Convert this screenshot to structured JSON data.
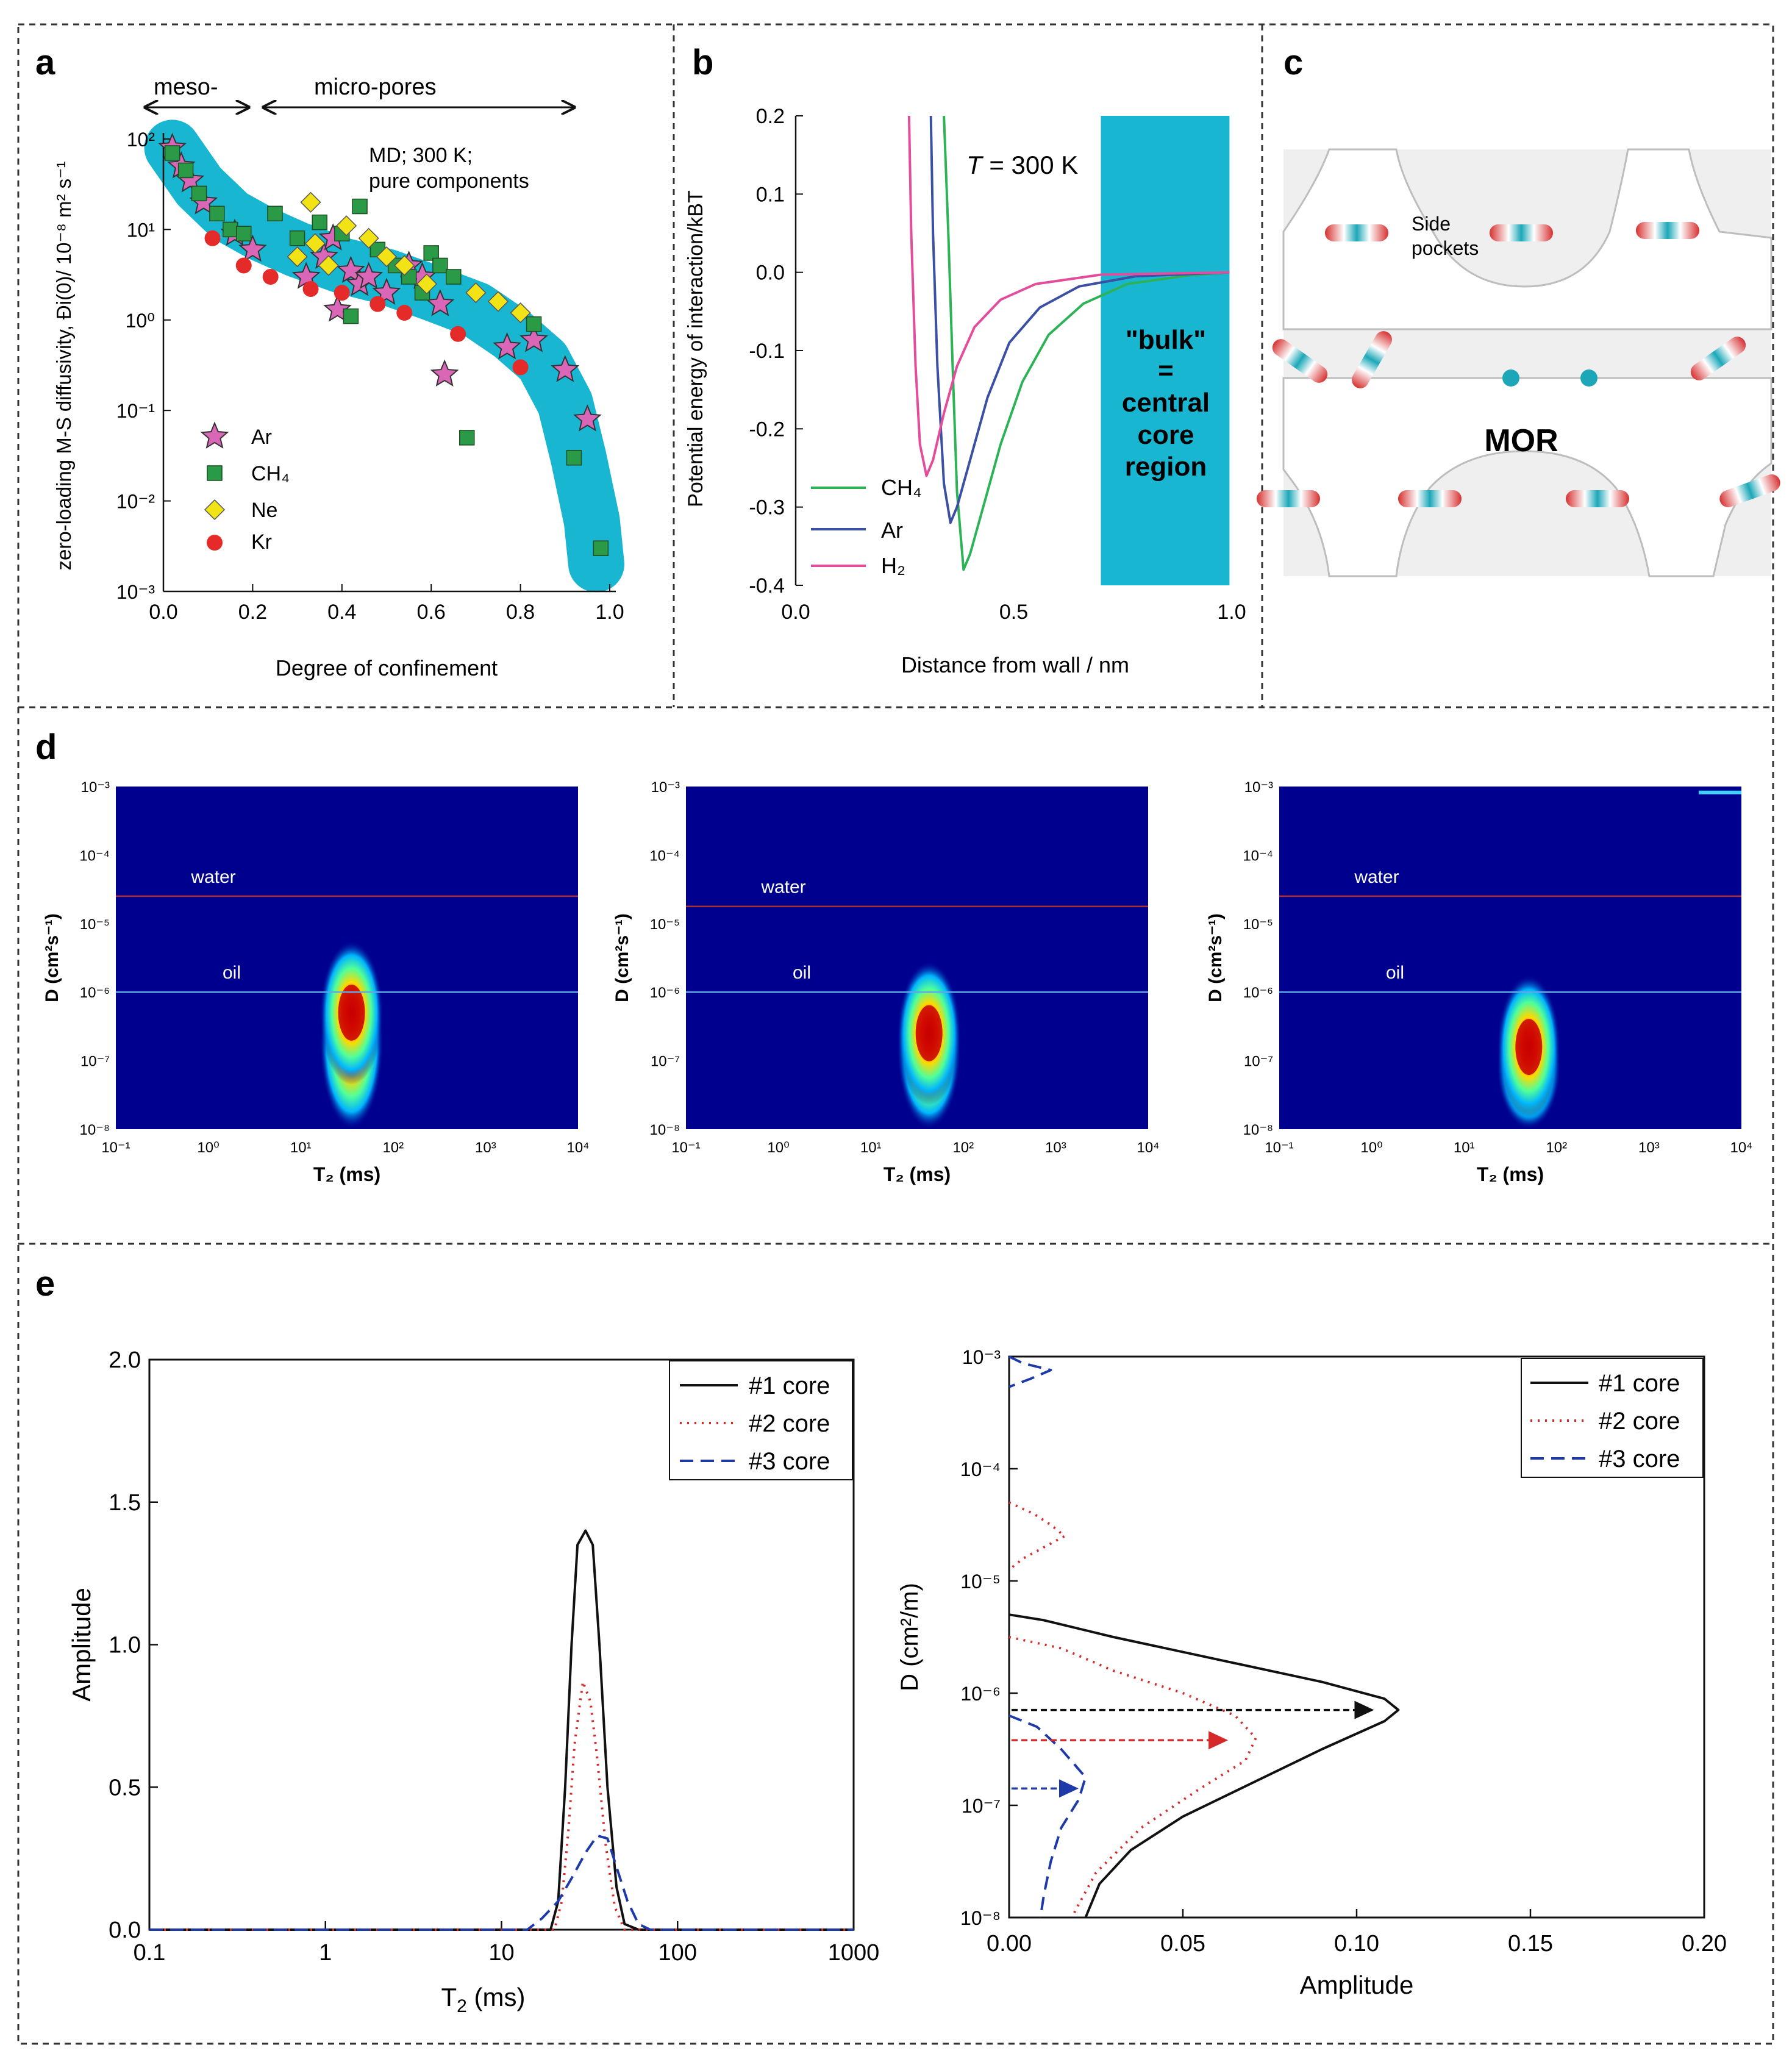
{
  "panels": {
    "a": "a",
    "b": "b",
    "c": "c",
    "d": "d",
    "e": "e"
  },
  "colors": {
    "cyan_band": "#19b6d2",
    "ar": "#d966b6",
    "ch4": "#2a9a46",
    "ne": "#f2e316",
    "kr": "#e52a2a",
    "b_ch4": "#2db356",
    "b_ar": "#3b4fa3",
    "b_h2": "#e34d9c",
    "heat_bg": "#00008f",
    "water_line": "#b03030",
    "oil_line": "#5fa8e8",
    "e_core1": "#111111",
    "e_core2": "#d62a2a",
    "e_core3": "#1e3aa8"
  },
  "chart_data": [
    {
      "id": "a",
      "type": "scatter",
      "xlabel": "Degree of confinement",
      "ylabel": "zero-loading M-S diffusivity, Đi(0)/ 10⁻⁸ m² s⁻¹",
      "xlim": [
        0,
        1.0
      ],
      "ylim_log10": [
        -3,
        2
      ],
      "yscale": "log",
      "xticks": [
        "0.0",
        "0.2",
        "0.4",
        "0.6",
        "0.8",
        "1.0"
      ],
      "yticks": [
        "10²",
        "10¹",
        "10⁰",
        "10⁻¹",
        "10⁻²",
        "10⁻³"
      ],
      "top_labels": {
        "meso": "meso-",
        "micro": "micro-pores"
      },
      "annotation": [
        "MD; 300 K;",
        "pure components"
      ],
      "legend": {
        "ar": "Ar",
        "ch4": "CH₄",
        "ne": "Ne",
        "kr": "Kr"
      },
      "band_center": [
        [
          0.02,
          80
        ],
        [
          0.08,
          30
        ],
        [
          0.15,
          14
        ],
        [
          0.22,
          9
        ],
        [
          0.3,
          6
        ],
        [
          0.4,
          4
        ],
        [
          0.5,
          3
        ],
        [
          0.6,
          2
        ],
        [
          0.7,
          1.3
        ],
        [
          0.78,
          0.7
        ],
        [
          0.85,
          0.35
        ],
        [
          0.9,
          0.12
        ],
        [
          0.93,
          0.03
        ],
        [
          0.96,
          0.006
        ],
        [
          0.97,
          0.002
        ]
      ],
      "series": [
        {
          "name": "Ar",
          "points": [
            [
              0.02,
              80
            ],
            [
              0.04,
              50
            ],
            [
              0.06,
              35
            ],
            [
              0.09,
              20
            ],
            [
              0.16,
              9
            ],
            [
              0.2,
              6
            ],
            [
              0.32,
              3
            ],
            [
              0.36,
              5
            ],
            [
              0.38,
              8
            ],
            [
              0.39,
              1.3
            ],
            [
              0.42,
              3.5
            ],
            [
              0.44,
              2.5
            ],
            [
              0.46,
              3
            ],
            [
              0.5,
              2
            ],
            [
              0.55,
              4
            ],
            [
              0.58,
              3
            ],
            [
              0.62,
              1.5
            ],
            [
              0.63,
              0.25
            ],
            [
              0.77,
              0.5
            ],
            [
              0.83,
              0.6
            ],
            [
              0.9,
              0.28
            ],
            [
              0.95,
              0.08
            ]
          ]
        },
        {
          "name": "CH4",
          "points": [
            [
              0.02,
              70
            ],
            [
              0.05,
              45
            ],
            [
              0.08,
              25
            ],
            [
              0.12,
              15
            ],
            [
              0.15,
              10
            ],
            [
              0.18,
              9
            ],
            [
              0.25,
              15
            ],
            [
              0.3,
              8
            ],
            [
              0.35,
              12
            ],
            [
              0.4,
              9
            ],
            [
              0.44,
              18
            ],
            [
              0.48,
              6
            ],
            [
              0.52,
              4
            ],
            [
              0.55,
              3
            ],
            [
              0.58,
              2
            ],
            [
              0.6,
              5.5
            ],
            [
              0.62,
              4
            ],
            [
              0.65,
              3
            ],
            [
              0.68,
              0.05
            ],
            [
              0.83,
              0.9
            ],
            [
              0.92,
              0.03
            ],
            [
              0.98,
              0.003
            ],
            [
              0.42,
              1.1
            ]
          ]
        },
        {
          "name": "Ne",
          "points": [
            [
              0.33,
              20
            ],
            [
              0.3,
              5
            ],
            [
              0.34,
              7
            ],
            [
              0.37,
              4
            ],
            [
              0.41,
              11
            ],
            [
              0.46,
              8
            ],
            [
              0.5,
              5
            ],
            [
              0.54,
              4
            ],
            [
              0.59,
              2.5
            ],
            [
              0.7,
              2
            ],
            [
              0.75,
              1.6
            ],
            [
              0.8,
              1.2
            ]
          ]
        },
        {
          "name": "Kr",
          "points": [
            [
              0.11,
              8
            ],
            [
              0.18,
              4
            ],
            [
              0.24,
              3
            ],
            [
              0.33,
              2.2
            ],
            [
              0.4,
              2
            ],
            [
              0.48,
              1.5
            ],
            [
              0.54,
              1.2
            ],
            [
              0.66,
              0.7
            ],
            [
              0.8,
              0.3
            ]
          ]
        }
      ]
    },
    {
      "id": "b",
      "type": "line",
      "xlabel": "Distance from wall / nm",
      "ylabel": "Potential energy of interaction/kBT",
      "xlim": [
        0,
        1.0
      ],
      "ylim": [
        -0.4,
        0.2
      ],
      "xticks": [
        "0.0",
        "0.5",
        "1.0"
      ],
      "yticks": [
        "0.2",
        "0.1",
        "0.0",
        "-0.1",
        "-0.2",
        "-0.3",
        "-0.4"
      ],
      "temp_label_parts": [
        "T",
        " = 300 K"
      ],
      "bulk_region_x": [
        0.7,
        0.995
      ],
      "bulk_label": [
        "\"bulk\"",
        "=",
        "central",
        "core",
        "region"
      ],
      "legend": {
        "ch4": "CH₄",
        "ar": "Ar",
        "h2": "H₂"
      },
      "series": [
        {
          "name": "CH4",
          "points": [
            [
              0.34,
              0.2
            ],
            [
              0.35,
              0.05
            ],
            [
              0.36,
              -0.12
            ],
            [
              0.37,
              -0.28
            ],
            [
              0.385,
              -0.38
            ],
            [
              0.4,
              -0.36
            ],
            [
              0.43,
              -0.3
            ],
            [
              0.47,
              -0.22
            ],
            [
              0.52,
              -0.14
            ],
            [
              0.58,
              -0.08
            ],
            [
              0.66,
              -0.04
            ],
            [
              0.76,
              -0.015
            ],
            [
              0.9,
              -0.004
            ],
            [
              0.995,
              0.0
            ]
          ]
        },
        {
          "name": "Ar",
          "points": [
            [
              0.31,
              0.2
            ],
            [
              0.315,
              0.05
            ],
            [
              0.325,
              -0.12
            ],
            [
              0.34,
              -0.27
            ],
            [
              0.355,
              -0.32
            ],
            [
              0.37,
              -0.3
            ],
            [
              0.4,
              -0.24
            ],
            [
              0.44,
              -0.16
            ],
            [
              0.49,
              -0.09
            ],
            [
              0.56,
              -0.045
            ],
            [
              0.65,
              -0.018
            ],
            [
              0.78,
              -0.005
            ],
            [
              0.995,
              0.0
            ]
          ]
        },
        {
          "name": "H2",
          "points": [
            [
              0.26,
              0.2
            ],
            [
              0.265,
              0.05
            ],
            [
              0.275,
              -0.12
            ],
            [
              0.285,
              -0.22
            ],
            [
              0.3,
              -0.26
            ],
            [
              0.315,
              -0.24
            ],
            [
              0.34,
              -0.18
            ],
            [
              0.37,
              -0.12
            ],
            [
              0.41,
              -0.07
            ],
            [
              0.47,
              -0.035
            ],
            [
              0.55,
              -0.015
            ],
            [
              0.7,
              -0.003
            ],
            [
              0.995,
              0.0
            ]
          ]
        }
      ]
    },
    {
      "id": "d",
      "type": "heatmap",
      "count": 3,
      "xlabel": "T₂ (ms)",
      "ylabel": "D (cm²s⁻¹)",
      "xlim_log10": [
        -1,
        4
      ],
      "ylim_log10": [
        -8,
        -3
      ],
      "xticks": [
        "10⁻¹",
        "10⁰",
        "10¹",
        "10²",
        "10³",
        "10⁴"
      ],
      "yticks": [
        "10⁻³",
        "10⁻⁴",
        "10⁻⁵",
        "10⁻⁶",
        "10⁻⁷",
        "10⁻⁸"
      ],
      "water_label": "water",
      "oil_label": "oil",
      "maps": [
        {
          "water_log10": -4.6,
          "oil_log10": -6.0,
          "peak_t2_log10": 1.55,
          "peak_d_log10": -6.3,
          "extent_high_d_log10": -5.5,
          "extent_low_d_log10": -8.0
        },
        {
          "water_log10": -4.75,
          "oil_log10": -6.0,
          "peak_t2_log10": 1.63,
          "peak_d_log10": -6.6,
          "extent_high_d_log10": -5.7,
          "extent_low_d_log10": -8.0
        },
        {
          "water_log10": -4.6,
          "oil_log10": -6.0,
          "peak_t2_log10": 1.7,
          "peak_d_log10": -6.8,
          "extent_high_d_log10": -6.2,
          "extent_low_d_log10": -8.0
        }
      ]
    },
    {
      "id": "e-left",
      "type": "line",
      "xlabel_parts": [
        "T",
        "2",
        " (ms)"
      ],
      "ylabel": "Amplitude",
      "xlim_log10": [
        -1,
        3
      ],
      "ylim": [
        0,
        2.0
      ],
      "xticks": [
        "0.1",
        "1",
        "10",
        "100",
        "1000"
      ],
      "yticks": [
        "0.0",
        "0.5",
        "1.0",
        "1.5",
        "2.0"
      ],
      "legend": [
        "#1 core",
        "#2 core",
        "#3 core"
      ],
      "series": [
        {
          "name": "#1 core",
          "points": [
            [
              0.1,
              0
            ],
            [
              19,
              0
            ],
            [
              21,
              0.1
            ],
            [
              23,
              0.5
            ],
            [
              25,
              1.0
            ],
            [
              27,
              1.35
            ],
            [
              30,
              1.4
            ],
            [
              33,
              1.35
            ],
            [
              36,
              1.0
            ],
            [
              40,
              0.5
            ],
            [
              45,
              0.15
            ],
            [
              50,
              0.02
            ],
            [
              60,
              0
            ],
            [
              1000,
              0
            ]
          ]
        },
        {
          "name": "#2 core",
          "points": [
            [
              0.1,
              0
            ],
            [
              20,
              0
            ],
            [
              22,
              0.1
            ],
            [
              24,
              0.35
            ],
            [
              26,
              0.65
            ],
            [
              29,
              0.87
            ],
            [
              32,
              0.8
            ],
            [
              35,
              0.6
            ],
            [
              39,
              0.3
            ],
            [
              44,
              0.08
            ],
            [
              50,
              0
            ],
            [
              1000,
              0
            ]
          ]
        },
        {
          "name": "#3 core",
          "points": [
            [
              0.1,
              0
            ],
            [
              14,
              0
            ],
            [
              17,
              0.04
            ],
            [
              21,
              0.1
            ],
            [
              25,
              0.18
            ],
            [
              30,
              0.27
            ],
            [
              35,
              0.33
            ],
            [
              40,
              0.32
            ],
            [
              45,
              0.22
            ],
            [
              52,
              0.1
            ],
            [
              60,
              0.02
            ],
            [
              70,
              0
            ],
            [
              1000,
              0
            ]
          ]
        }
      ]
    },
    {
      "id": "e-right",
      "type": "line",
      "xlabel": "Amplitude",
      "ylabel": "D (cm²/m)",
      "xlim": [
        0,
        0.2
      ],
      "ylim_log10": [
        -8,
        -3
      ],
      "xticks": [
        "0.00",
        "0.05",
        "0.10",
        "0.15",
        "0.20"
      ],
      "yticks": [
        "10⁻³",
        "10⁻⁴",
        "10⁻⁵",
        "10⁻⁶",
        "10⁻⁷",
        "10⁻⁸"
      ],
      "legend": [
        "#1 core",
        "#2 core",
        "#3 core"
      ],
      "arrows_log10D": [
        -6.15,
        -6.42,
        -6.85
      ],
      "series": [
        {
          "name": "#1 core",
          "points": [
            [
              0.0,
              -5.3
            ],
            [
              0.01,
              -5.35
            ],
            [
              0.03,
              -5.5
            ],
            [
              0.06,
              -5.7
            ],
            [
              0.09,
              -5.9
            ],
            [
              0.108,
              -6.05
            ],
            [
              0.112,
              -6.15
            ],
            [
              0.108,
              -6.25
            ],
            [
              0.09,
              -6.5
            ],
            [
              0.07,
              -6.8
            ],
            [
              0.05,
              -7.1
            ],
            [
              0.035,
              -7.4
            ],
            [
              0.026,
              -7.7
            ],
            [
              0.022,
              -8.0
            ]
          ]
        },
        {
          "name": "#2 core",
          "points": [
            [
              0.0,
              -5.5
            ],
            [
              0.015,
              -5.6
            ],
            [
              0.03,
              -5.8
            ],
            [
              0.05,
              -6.0
            ],
            [
              0.065,
              -6.2
            ],
            [
              0.071,
              -6.4
            ],
            [
              0.068,
              -6.6
            ],
            [
              0.055,
              -6.85
            ],
            [
              0.038,
              -7.2
            ],
            [
              0.025,
              -7.6
            ],
            [
              0.018,
              -8.0
            ]
          ]
        },
        {
          "name": "#2 core high-D",
          "points": [
            [
              0.0,
              -4.3
            ],
            [
              0.007,
              -4.4
            ],
            [
              0.012,
              -4.5
            ],
            [
              0.016,
              -4.6
            ],
            [
              0.01,
              -4.7
            ],
            [
              0.004,
              -4.8
            ],
            [
              0.0,
              -4.9
            ]
          ]
        },
        {
          "name": "#3 core",
          "points": [
            [
              0.0,
              -6.2
            ],
            [
              0.008,
              -6.3
            ],
            [
              0.015,
              -6.5
            ],
            [
              0.022,
              -6.75
            ],
            [
              0.02,
              -6.95
            ],
            [
              0.015,
              -7.2
            ],
            [
              0.012,
              -7.5
            ],
            [
              0.01,
              -7.8
            ],
            [
              0.009,
              -8.0
            ]
          ]
        },
        {
          "name": "#3 core top",
          "points": [
            [
              0.0,
              -3.0
            ],
            [
              0.004,
              -3.06
            ],
            [
              0.012,
              -3.12
            ],
            [
              0.006,
              -3.2
            ],
            [
              0.0,
              -3.27
            ]
          ]
        }
      ]
    }
  ],
  "panel_c": {
    "side_pockets": [
      "Side",
      "pockets"
    ],
    "framework": "MOR"
  }
}
